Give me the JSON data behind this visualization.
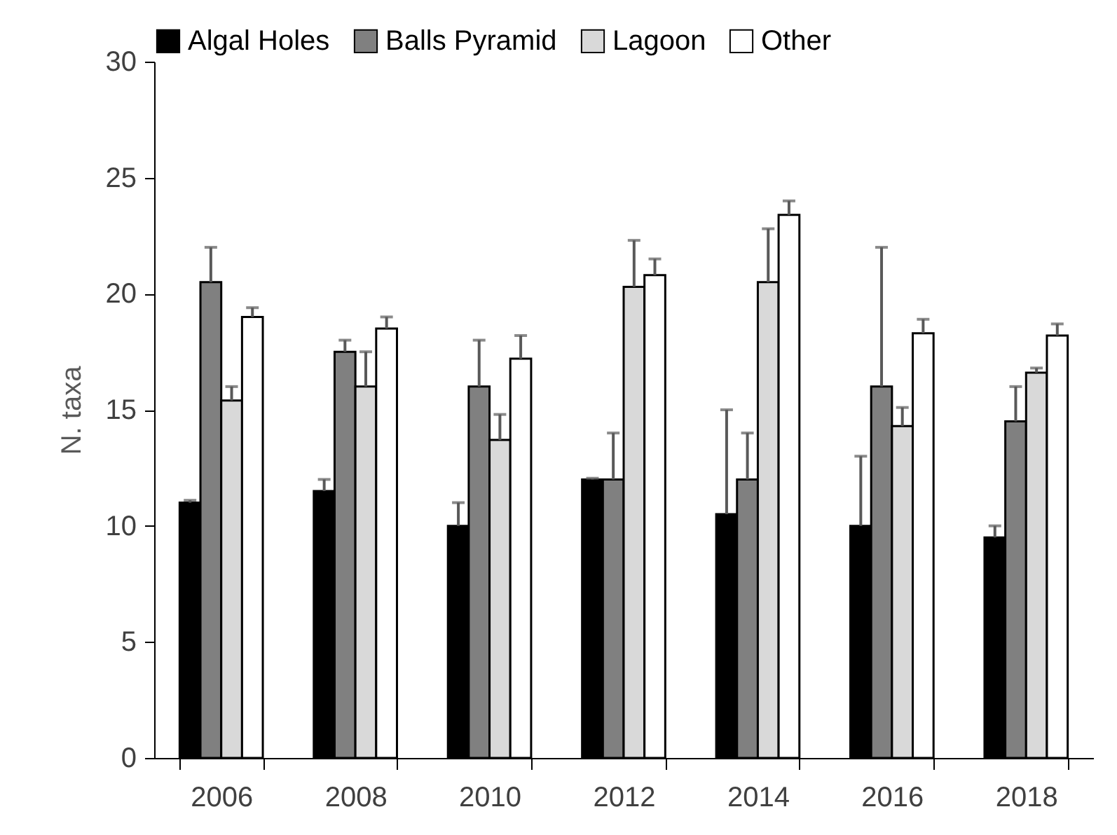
{
  "chart_data": {
    "type": "bar",
    "ylabel": "N. taxa",
    "categories": [
      "2006",
      "2008",
      "2010",
      "2012",
      "2014",
      "2016",
      "2018"
    ],
    "series": [
      {
        "name": "Algal Holes",
        "color": "#000000",
        "values": [
          11,
          11.5,
          10,
          12,
          10.5,
          10,
          9.5
        ],
        "errors": [
          [
            11,
            11.1
          ],
          [
            11.5,
            12
          ],
          [
            10,
            11
          ],
          [
            12,
            12.05
          ],
          [
            10.5,
            15
          ],
          [
            10,
            13
          ],
          [
            9.5,
            10
          ]
        ]
      },
      {
        "name": "Balls Pyramid",
        "color": "#808080",
        "values": [
          20.5,
          17.5,
          16,
          12,
          12,
          16,
          14.5
        ],
        "errors": [
          [
            20.5,
            22
          ],
          [
            17.5,
            18
          ],
          [
            16,
            18
          ],
          [
            12,
            14
          ],
          [
            12,
            14
          ],
          [
            16,
            22
          ],
          [
            14.5,
            16
          ]
        ]
      },
      {
        "name": "Lagoon",
        "color": "#d9d9d9",
        "values": [
          15.4,
          16,
          13.7,
          20.3,
          20.5,
          14.3,
          16.6
        ],
        "errors": [
          [
            15.4,
            16
          ],
          [
            16,
            17.5
          ],
          [
            13.7,
            14.8
          ],
          [
            20.3,
            22.3
          ],
          [
            20.5,
            22.8
          ],
          [
            14.3,
            15.1
          ],
          [
            16.6,
            16.8
          ]
        ]
      },
      {
        "name": "Other",
        "color": "#ffffff",
        "values": [
          19,
          18.5,
          17.2,
          20.8,
          23.4,
          18.3,
          18.2
        ],
        "errors": [
          [
            19,
            19.4
          ],
          [
            18.5,
            19
          ],
          [
            17.2,
            18.2
          ],
          [
            20.8,
            21.5
          ],
          [
            23.4,
            24
          ],
          [
            18.3,
            18.9
          ],
          [
            18.2,
            18.7
          ]
        ]
      }
    ],
    "ylim": [
      0,
      30
    ],
    "yticks": [
      0,
      5,
      10,
      15,
      20,
      25,
      30
    ],
    "grid": false,
    "legend": "top"
  }
}
